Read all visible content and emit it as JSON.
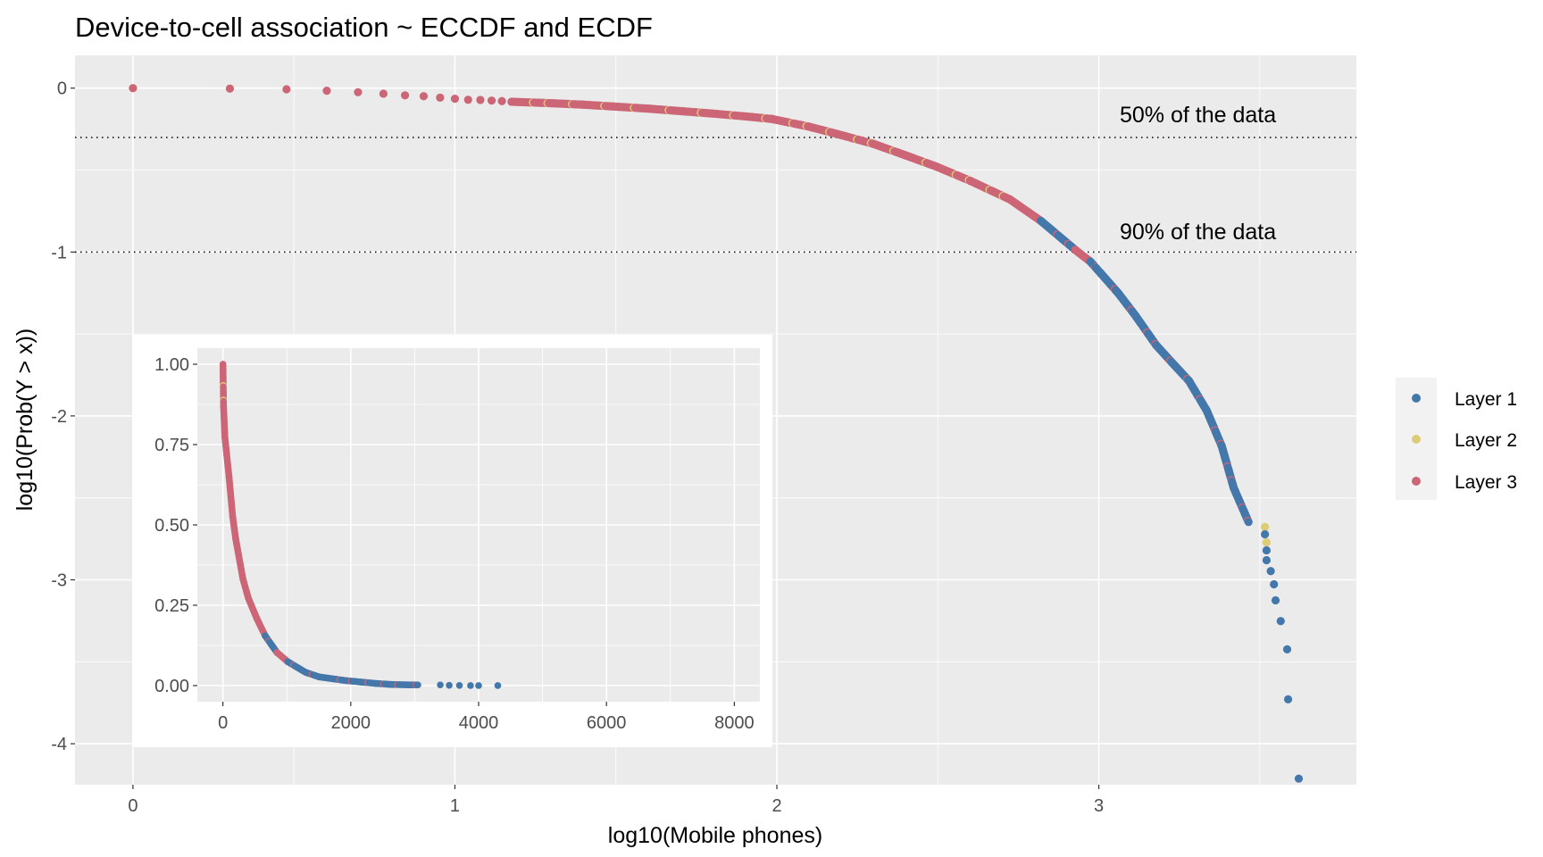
{
  "title": "Device-to-cell association ~ ECCDF and ECDF",
  "legend": {
    "position": "right",
    "items": [
      {
        "label": "Layer 1",
        "color": "#4477AA"
      },
      {
        "label": "Layer 2",
        "color": "#DDCC77"
      },
      {
        "label": "Layer 3",
        "color": "#CC6677"
      }
    ]
  },
  "chart_data": [
    {
      "type": "scatter",
      "xlabel": "log10(Mobile phones)",
      "ylabel": "log10(Prob(Y > x))",
      "xlim": [
        -0.18,
        3.8
      ],
      "ylim": [
        -4.25,
        0.2
      ],
      "x_ticks": [
        "0",
        "1",
        "2",
        "3"
      ],
      "y_ticks": [
        "0",
        "-1",
        "-2",
        "-3",
        "-4"
      ],
      "grid": true,
      "hlines": [
        {
          "y": -0.301,
          "label": "50% of the data",
          "style": "dotted"
        },
        {
          "y": -1,
          "label": "90% of the data",
          "style": "dotted"
        }
      ],
      "points": [
        [
          0,
          0,
          "Layer 3"
        ],
        [
          0.301,
          -0.003,
          "Layer 3"
        ],
        [
          0.477,
          -0.007,
          "Layer 3"
        ],
        [
          0.602,
          -0.016,
          "Layer 3"
        ],
        [
          0.699,
          -0.025,
          "Layer 3"
        ],
        [
          0.778,
          -0.034,
          "Layer 3"
        ],
        [
          0.845,
          -0.044,
          "Layer 3"
        ],
        [
          0.903,
          -0.049,
          "Layer 3"
        ],
        [
          0.954,
          -0.058,
          "Layer 3"
        ],
        [
          1.0,
          -0.065,
          "Layer 3"
        ],
        [
          1.041,
          -0.071,
          "Layer 3"
        ],
        [
          1.079,
          -0.072,
          "Layer 3"
        ],
        [
          1.114,
          -0.076,
          "Layer 3"
        ],
        [
          1.146,
          -0.079,
          "Layer 3"
        ],
        [
          1.176,
          -0.083,
          "Layer 3"
        ],
        [
          1.3,
          -0.092,
          "Layer 3"
        ],
        [
          1.4,
          -0.101,
          "Layer 3"
        ],
        [
          1.492,
          -0.112,
          "Layer 3"
        ],
        [
          1.6,
          -0.125,
          "Layer 3"
        ],
        [
          1.7,
          -0.14,
          "Layer 3"
        ],
        [
          1.8,
          -0.155,
          "Layer 3"
        ],
        [
          1.9,
          -0.172,
          "Layer 3"
        ],
        [
          1.984,
          -0.188,
          "Layer 3"
        ],
        [
          2.1,
          -0.235,
          "Layer 3"
        ],
        [
          2.186,
          -0.279,
          "Layer 3"
        ],
        [
          2.3,
          -0.34,
          "Layer 3"
        ],
        [
          2.4,
          -0.41,
          "Layer 3"
        ],
        [
          2.496,
          -0.479,
          "Layer 3"
        ],
        [
          2.6,
          -0.565,
          "Layer 3"
        ],
        [
          2.724,
          -0.679,
          "Layer 3"
        ],
        [
          2.82,
          -0.81,
          "Layer 1"
        ],
        [
          2.927,
          -0.987,
          "Layer 3"
        ],
        [
          2.974,
          -1.059,
          "Layer 1"
        ],
        [
          3.007,
          -1.132,
          "Layer 1"
        ],
        [
          3.06,
          -1.25,
          "Layer 1"
        ],
        [
          3.113,
          -1.386,
          "Layer 1"
        ],
        [
          3.178,
          -1.568,
          "Layer 1"
        ],
        [
          3.23,
          -1.68,
          "Layer 1"
        ],
        [
          3.28,
          -1.786,
          "Layer 1"
        ],
        [
          3.335,
          -1.967,
          "Layer 1"
        ],
        [
          3.382,
          -2.185,
          "Layer 1"
        ],
        [
          3.419,
          -2.439,
          "Layer 1"
        ],
        [
          3.465,
          -2.647,
          "Layer 1"
        ],
        [
          3.516,
          -2.678,
          "Layer 2"
        ],
        [
          3.516,
          -2.722,
          "Layer 1"
        ],
        [
          3.521,
          -2.771,
          "Layer 2"
        ],
        [
          3.521,
          -2.82,
          "Layer 1"
        ],
        [
          3.521,
          -2.88,
          "Layer 1"
        ],
        [
          3.534,
          -2.947,
          "Layer 1"
        ],
        [
          3.544,
          -3.027,
          "Layer 1"
        ],
        [
          3.549,
          -3.125,
          "Layer 1"
        ],
        [
          3.565,
          -3.252,
          "Layer 1"
        ],
        [
          3.585,
          -3.424,
          "Layer 1"
        ],
        [
          3.588,
          -3.729,
          "Layer 1"
        ],
        [
          3.621,
          -4.213,
          "Layer 1"
        ]
      ]
    },
    {
      "type": "scatter",
      "placement": "inset",
      "xlim": [
        -400,
        8400
      ],
      "ylim": [
        -0.05,
        1.05
      ],
      "x_ticks": [
        "0",
        "2000",
        "4000",
        "6000",
        "8000"
      ],
      "y_ticks": [
        "0.00",
        "0.25",
        "0.50",
        "0.75",
        "1.00"
      ],
      "grid": true,
      "points": [
        [
          1,
          1.0,
          "Layer 3"
        ],
        [
          10,
          0.868,
          "Layer 3"
        ],
        [
          31,
          0.773,
          "Layer 3"
        ],
        [
          96,
          0.649,
          "Layer 3"
        ],
        [
          153,
          0.526,
          "Layer 3"
        ],
        [
          200,
          0.457,
          "Layer 3"
        ],
        [
          313,
          0.332,
          "Layer 3"
        ],
        [
          398,
          0.272,
          "Layer 3"
        ],
        [
          530,
          0.209,
          "Layer 3"
        ],
        [
          661,
          0.155,
          "Layer 1"
        ],
        [
          845,
          0.103,
          "Layer 3"
        ],
        [
          1016,
          0.074,
          "Layer 1"
        ],
        [
          1297,
          0.041,
          "Layer 1"
        ],
        [
          1507,
          0.027,
          "Layer 1"
        ],
        [
          1905,
          0.016,
          "Layer 1"
        ],
        [
          2163,
          0.011,
          "Layer 1"
        ],
        [
          2410,
          0.0065,
          "Layer 1"
        ],
        [
          2624,
          0.0036,
          "Layer 1"
        ],
        [
          2917,
          0.0023,
          "Layer 1"
        ],
        [
          3050,
          0.0021,
          "Layer 1"
        ],
        [
          3400,
          0.0021,
          "Layer 1"
        ],
        [
          3540,
          0.0008,
          "Layer 1"
        ],
        [
          3700,
          0.0006,
          "Layer 1"
        ],
        [
          3873,
          0.0002,
          "Layer 1"
        ],
        [
          4000,
          0.0001,
          "Layer 1"
        ],
        [
          4300,
          6e-05,
          "Layer 1"
        ]
      ]
    }
  ]
}
